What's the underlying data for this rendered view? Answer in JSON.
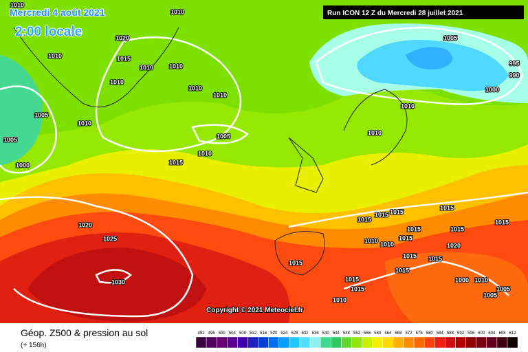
{
  "header": {
    "date": "Mercredi 4 août 2021",
    "time": "2:00 locale",
    "run": "Run ICON 12 Z du Mercredi 28 juillet 2021"
  },
  "copyright": "Copyright © 2021 Meteociel.fr",
  "footer": {
    "title": "Géop. Z500 & pression au sol",
    "lead": "(+ 156h)"
  },
  "scale_labels": [
    "492",
    "496",
    "500",
    "504",
    "508",
    "512",
    "516",
    "520",
    "524",
    "528",
    "532",
    "536",
    "540",
    "544",
    "548",
    "552",
    "556",
    "560",
    "564",
    "568",
    "572",
    "576",
    "580",
    "584",
    "588",
    "592",
    "596",
    "600",
    "604",
    "608",
    "612"
  ],
  "isobar_labels": [
    "1010",
    "1010",
    "1020",
    "1015",
    "1010",
    "1010",
    "1010",
    "1010",
    "1010",
    "1010",
    "1005",
    "1010",
    "1005",
    "1005",
    "1010",
    "1015",
    "1000",
    "1005",
    "995",
    "990",
    "1000",
    "1010",
    "1010",
    "1020",
    "1025",
    "1030",
    "1015",
    "1015",
    "1015",
    "1015",
    "1015",
    "1015",
    "1015",
    "1010",
    "1010",
    "1015",
    "1015",
    "1020",
    "1015",
    "1015",
    "1015",
    "1015",
    "1015",
    "1010",
    "1010",
    "1000",
    "1005",
    "1005"
  ]
}
